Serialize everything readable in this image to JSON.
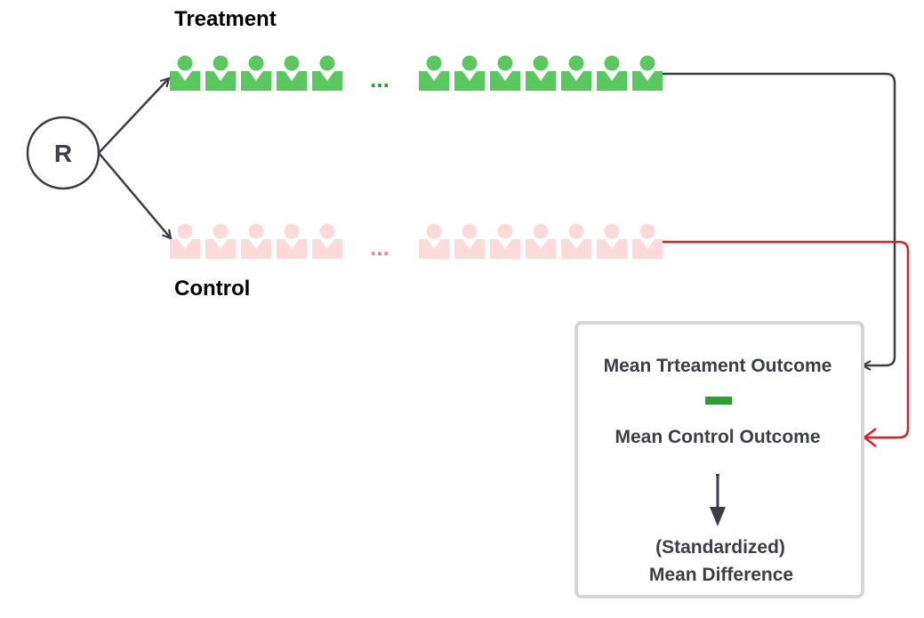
{
  "randomizer": {
    "label": "R"
  },
  "treatment": {
    "label": "Treatment",
    "color": "#5ac85e",
    "ellipsis": "...",
    "ellipsis_color": "#2e9e34",
    "left_count": 5,
    "right_count": 7
  },
  "control": {
    "label": "Control",
    "color": "#fddada",
    "ellipsis": "...",
    "ellipsis_color": "#f08a8a",
    "left_count": 5,
    "right_count": 7
  },
  "result_box": {
    "treatment_outcome": "Mean Trteament Outcome",
    "control_outcome": "Mean Control Outcome",
    "minus_color": "#2e9e34",
    "result_line1": "(Standardized)",
    "result_line2": "Mean Difference"
  },
  "colors": {
    "ink": "#3a3f47",
    "treatment_arrow": "#3a3f47",
    "control_arrow": "#dd2020",
    "box_border": "#d6d6d6"
  }
}
